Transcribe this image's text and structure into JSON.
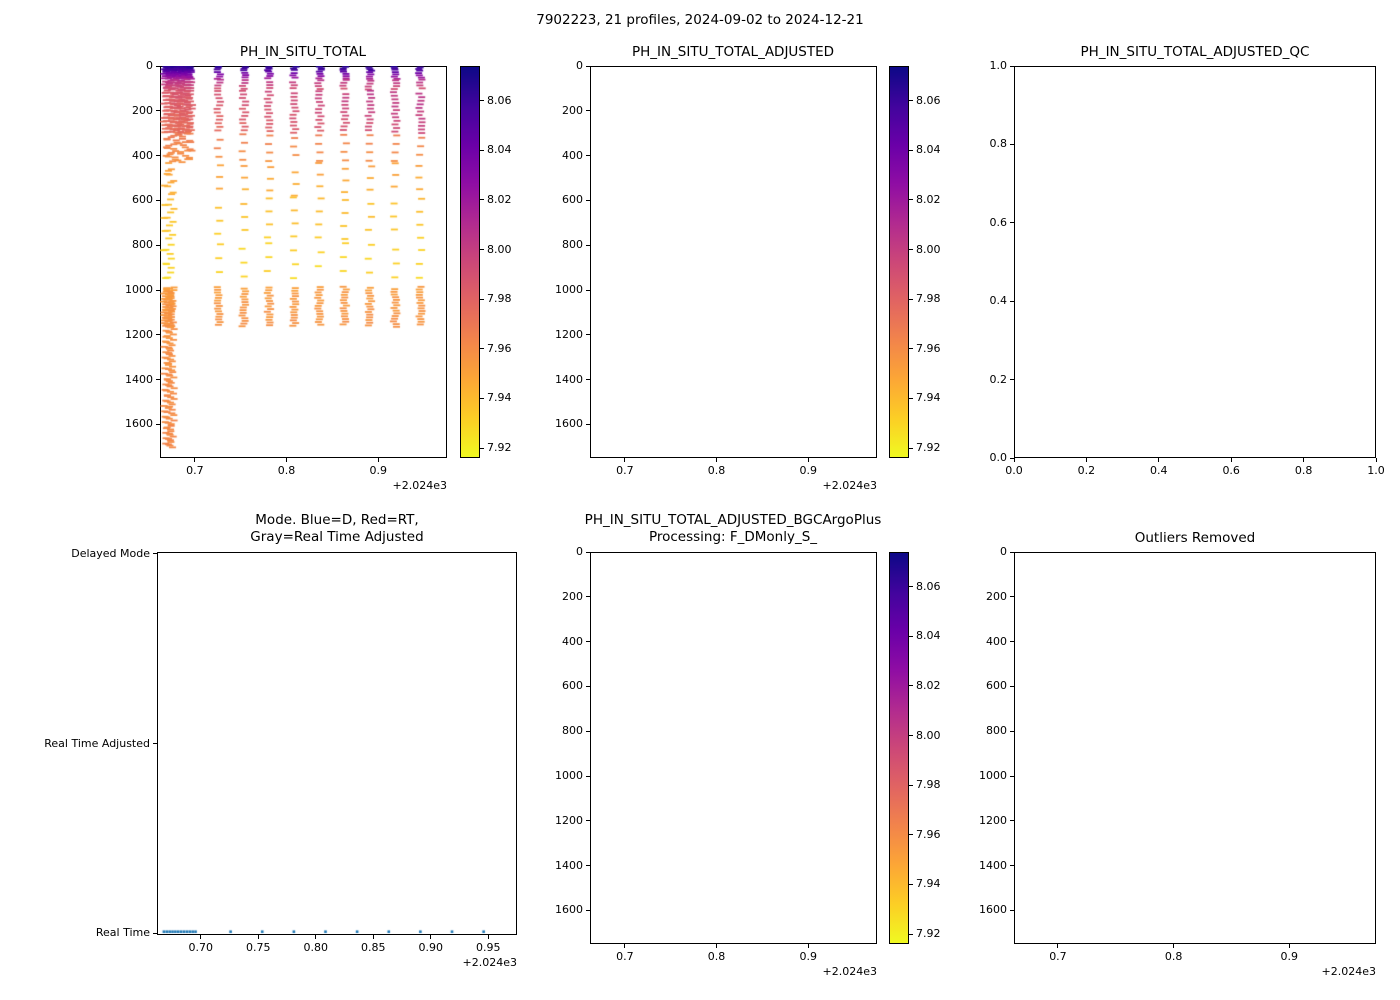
{
  "figure": {
    "title": "7902223, 21 profiles, 2024-09-02 to 2024-12-21",
    "background": "#ffffff"
  },
  "colormap": {
    "vmin": 7.916,
    "vmax": 8.074,
    "stops": [
      [
        0.0,
        "#0d0887"
      ],
      [
        0.1,
        "#41049d"
      ],
      [
        0.2,
        "#6a00a8"
      ],
      [
        0.3,
        "#8f0da4"
      ],
      [
        0.4,
        "#b12a90"
      ],
      [
        0.5,
        "#cc4778"
      ],
      [
        0.6,
        "#e16462"
      ],
      [
        0.7,
        "#f2844b"
      ],
      [
        0.8,
        "#fca636"
      ],
      [
        0.9,
        "#fcce25"
      ],
      [
        1.0,
        "#f0f921"
      ]
    ]
  },
  "subplots": {
    "ph_raw": {
      "title": "PH_IN_SITU_TOTAL",
      "xlim": [
        2024.662,
        2024.975
      ],
      "ylim": [
        0,
        1750
      ],
      "xtick_values": [
        2024.7,
        2024.8,
        2024.9
      ],
      "xticks": [
        "0.7",
        "0.8",
        "0.9"
      ],
      "ytick_values": [
        0,
        200,
        400,
        600,
        800,
        1000,
        1200,
        1400,
        1600
      ],
      "yticks": [
        "0",
        "200",
        "400",
        "600",
        "800",
        "1000",
        "1200",
        "1400",
        "1600"
      ],
      "offset_label": "+2.024e3",
      "colorbar": {
        "values": [
          8.06,
          8.04,
          8.02,
          8.0,
          7.98,
          7.96,
          7.94,
          7.92
        ],
        "labels": [
          "8.06",
          "8.04",
          "8.02",
          "8.00",
          "7.98",
          "7.96",
          "7.94",
          "7.92"
        ]
      }
    },
    "ph_adjusted": {
      "title": "PH_IN_SITU_TOTAL_ADJUSTED",
      "xlim": [
        2024.662,
        2024.975
      ],
      "ylim": [
        0,
        1750
      ],
      "xtick_values": [
        2024.7,
        2024.8,
        2024.9
      ],
      "xticks": [
        "0.7",
        "0.8",
        "0.9"
      ],
      "ytick_values": [
        0,
        200,
        400,
        600,
        800,
        1000,
        1200,
        1400,
        1600
      ],
      "yticks": [
        "0",
        "200",
        "400",
        "600",
        "800",
        "1000",
        "1200",
        "1400",
        "1600"
      ],
      "offset_label": "+2.024e3",
      "colorbar": {
        "values": [
          8.06,
          8.04,
          8.02,
          8.0,
          7.98,
          7.96,
          7.94,
          7.92
        ],
        "labels": [
          "8.06",
          "8.04",
          "8.02",
          "8.00",
          "7.98",
          "7.96",
          "7.94",
          "7.92"
        ]
      }
    },
    "qc": {
      "title": "PH_IN_SITU_TOTAL_ADJUSTED_QC",
      "xlim": [
        0,
        1
      ],
      "ylim": [
        1,
        0
      ],
      "xtick_values": [
        0.0,
        0.2,
        0.4,
        0.6,
        0.8,
        1.0
      ],
      "xticks": [
        "0.0",
        "0.2",
        "0.4",
        "0.6",
        "0.8",
        "1.0"
      ],
      "ytick_values": [
        1.0,
        0.8,
        0.6,
        0.4,
        0.2,
        0.0
      ],
      "yticks": [
        "1.0",
        "0.8",
        "0.6",
        "0.4",
        "0.2",
        "0.0"
      ]
    },
    "mode": {
      "title_line1": "Mode. Blue=D, Red=RT,",
      "title_line2": "Gray=Real Time Adjusted",
      "xlim": [
        2024.662,
        2024.975
      ],
      "xtick_values": [
        2024.7,
        2024.75,
        2024.8,
        2024.85,
        2024.9,
        2024.95
      ],
      "xticks": [
        "0.70",
        "0.75",
        "0.80",
        "0.85",
        "0.90",
        "0.95"
      ],
      "yticklabels": [
        "Delayed Mode",
        "Real Time Adjusted",
        "Real Time"
      ],
      "ycat_fracs": [
        0.004,
        0.5,
        0.996
      ],
      "offset_label": "+2.024e3"
    },
    "bgc": {
      "title_line1": "PH_IN_SITU_TOTAL_ADJUSTED_BGCArgoPlus",
      "title_line2": "Processing: F_DMonly_S_",
      "xlim": [
        2024.662,
        2024.975
      ],
      "ylim": [
        0,
        1750
      ],
      "xtick_values": [
        2024.7,
        2024.8,
        2024.9
      ],
      "xticks": [
        "0.7",
        "0.8",
        "0.9"
      ],
      "ytick_values": [
        0,
        200,
        400,
        600,
        800,
        1000,
        1200,
        1400,
        1600
      ],
      "yticks": [
        "0",
        "200",
        "400",
        "600",
        "800",
        "1000",
        "1200",
        "1400",
        "1600"
      ],
      "offset_label": "+2.024e3",
      "colorbar": {
        "values": [
          8.06,
          8.04,
          8.02,
          8.0,
          7.98,
          7.96,
          7.94,
          7.92
        ],
        "labels": [
          "8.06",
          "8.04",
          "8.02",
          "8.00",
          "7.98",
          "7.96",
          "7.94",
          "7.92"
        ]
      }
    },
    "outliers": {
      "title": "Outliers Removed",
      "xlim": [
        2024.662,
        2024.975
      ],
      "ylim": [
        0,
        1750
      ],
      "xtick_values": [
        2024.7,
        2024.8,
        2024.9
      ],
      "xticks": [
        "0.7",
        "0.8",
        "0.9"
      ],
      "ytick_values": [
        0,
        200,
        400,
        600,
        800,
        1000,
        1200,
        1400,
        1600
      ],
      "yticks": [
        "0",
        "200",
        "400",
        "600",
        "800",
        "1000",
        "1200",
        "1400",
        "1600"
      ],
      "offset_label": "+2.024e3"
    }
  },
  "chart_data": [
    {
      "type": "scatter",
      "target": "ph_raw",
      "title": "PH_IN_SITU_TOTAL",
      "marker": "hline-dash",
      "x_axis": "time (decimal year, offset +2.024e3)",
      "y_axis": "pressure (0 at top, increasing downward)",
      "color_axis_range": [
        7.92,
        8.06
      ],
      "profiles_x": [
        2024.668,
        2024.6705,
        2024.673,
        2024.6755,
        2024.678,
        2024.6805,
        2024.683,
        2024.6855,
        2024.688,
        2024.6905,
        2024.693,
        2024.6955,
        2024.726,
        2024.7535,
        2024.781,
        2024.8085,
        2024.836,
        2024.8635,
        2024.891,
        2024.9185,
        2024.946
      ],
      "cluster_count": 12,
      "deep_cluster_count": 4,
      "x_jitter": 0.004,
      "ph_jitter": 0.006,
      "bands": [
        {
          "depth": [
            0,
            22
          ],
          "step": 7,
          "ph": [
            8.067,
            8.052
          ],
          "scope": "all"
        },
        {
          "depth": [
            22,
            60
          ],
          "step": 10,
          "ph": [
            8.05,
            8.012
          ],
          "scope": "all"
        },
        {
          "depth": [
            60,
            110
          ],
          "step": 13,
          "ph": [
            8.008,
            7.988
          ],
          "scope": "all"
        },
        {
          "depth": [
            110,
            300
          ],
          "step": 16,
          "ph": [
            7.986,
            7.972
          ],
          "ph_trend": 0.022,
          "scope": "all"
        },
        {
          "depth": [
            300,
            430
          ],
          "step": 38,
          "ph": [
            7.968,
            7.957
          ],
          "scope": "all"
        },
        {
          "depth": [
            430,
            580
          ],
          "step": 52,
          "ph": [
            7.951,
            7.944
          ],
          "scope": "deep_and_spaced"
        },
        {
          "depth": [
            580,
            780
          ],
          "step": 58,
          "ph": [
            7.94,
            7.933
          ],
          "scope": "deep_and_spaced"
        },
        {
          "depth": [
            780,
            955
          ],
          "step": 62,
          "ph": [
            7.931,
            7.929
          ],
          "scope": "deep_and_spaced"
        },
        {
          "depth": [
            985,
            1165
          ],
          "step": 12,
          "ph": [
            7.953,
            7.958
          ],
          "scope": "deep_and_spaced"
        },
        {
          "depth": [
            1165,
            1705
          ],
          "step": 24,
          "ph": [
            7.957,
            7.962
          ],
          "scope": "deep_only"
        }
      ]
    },
    {
      "type": "scatter",
      "target": "mode",
      "title": "Mode. Blue=D, Red=RT, Gray=Real Time Adjusted",
      "series": [
        {
          "name": "Real Time profiles",
          "category": "Real Time",
          "color": "#1f77b4",
          "x": [
            2024.668,
            2024.6705,
            2024.673,
            2024.6755,
            2024.678,
            2024.6805,
            2024.683,
            2024.6855,
            2024.688,
            2024.6905,
            2024.693,
            2024.6955,
            2024.726,
            2024.7535,
            2024.781,
            2024.8085,
            2024.836,
            2024.8635,
            2024.891,
            2024.9185,
            2024.946
          ]
        }
      ]
    },
    {
      "type": "scatter",
      "target": "ph_adjusted",
      "title": "PH_IN_SITU_TOTAL_ADJUSTED",
      "points": []
    },
    {
      "type": "scatter",
      "target": "qc",
      "title": "PH_IN_SITU_TOTAL_ADJUSTED_QC",
      "points": []
    },
    {
      "type": "scatter",
      "target": "bgc",
      "title": "PH_IN_SITU_TOTAL_ADJUSTED_BGCArgoPlus Processing: F_DMonly_S_",
      "points": []
    },
    {
      "type": "scatter",
      "target": "outliers",
      "title": "Outliers Removed",
      "points": []
    }
  ]
}
